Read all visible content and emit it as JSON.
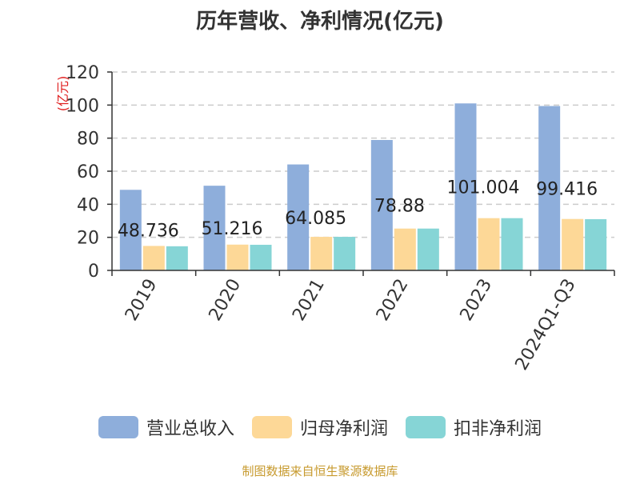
{
  "chart_data": {
    "type": "bar",
    "title": "历年营收、净利情况(亿元)",
    "ylabel": "(亿元)",
    "xlabel": "",
    "categories": [
      "2019",
      "2020",
      "2021",
      "2022",
      "2023",
      "2024Q1-Q3"
    ],
    "series": [
      {
        "name": "营业总收入",
        "color": "#8eaedb",
        "values": [
          48.736,
          51.216,
          64.085,
          78.88,
          101.004,
          99.416
        ],
        "labels": [
          "48.736",
          "51.216",
          "64.085",
          "78.88",
          "101.004",
          "99.416"
        ]
      },
      {
        "name": "归母净利润",
        "color": "#fdd897",
        "values": [
          14.8,
          15.6,
          20.3,
          25.3,
          31.6,
          31.1
        ]
      },
      {
        "name": "扣非净利润",
        "color": "#86d5d6",
        "values": [
          14.6,
          15.5,
          20.3,
          25.3,
          31.6,
          31.0
        ]
      }
    ],
    "ylim": [
      0,
      120
    ],
    "yticks": [
      0,
      20,
      40,
      60,
      80,
      100,
      120
    ],
    "grid": true,
    "legend_position": "bottom"
  },
  "source_note": "制图数据来自恒生聚源数据库"
}
